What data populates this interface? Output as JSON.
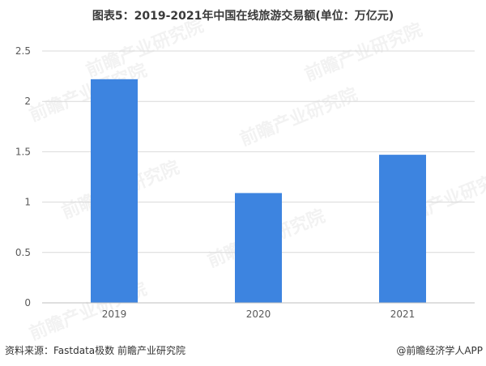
{
  "title": "图表5：2019-2021年中国在线旅游交易额(单位：万亿元)",
  "watermark": "前瞻产业研究院",
  "source": "资料来源：Fastdata极数 前瞻产业研究院",
  "credit": "@前瞻经济学人APP",
  "colors": {
    "bar": "#3d84e0",
    "grid": "#d9d9d9",
    "axis": "#bfbfbf",
    "tick": "#595959"
  },
  "chart_data": {
    "type": "bar",
    "title": "图表5：2019-2021年中国在线旅游交易额(单位：万亿元)",
    "categories": [
      "2019",
      "2020",
      "2021"
    ],
    "values": [
      2.22,
      1.09,
      1.47
    ],
    "ylim": [
      0,
      2.5
    ],
    "yticks": [
      "0",
      "0.5",
      "1",
      "1.5",
      "2",
      "2.5"
    ],
    "xlabel": "",
    "ylabel": "",
    "grid": true,
    "legend": "none"
  }
}
